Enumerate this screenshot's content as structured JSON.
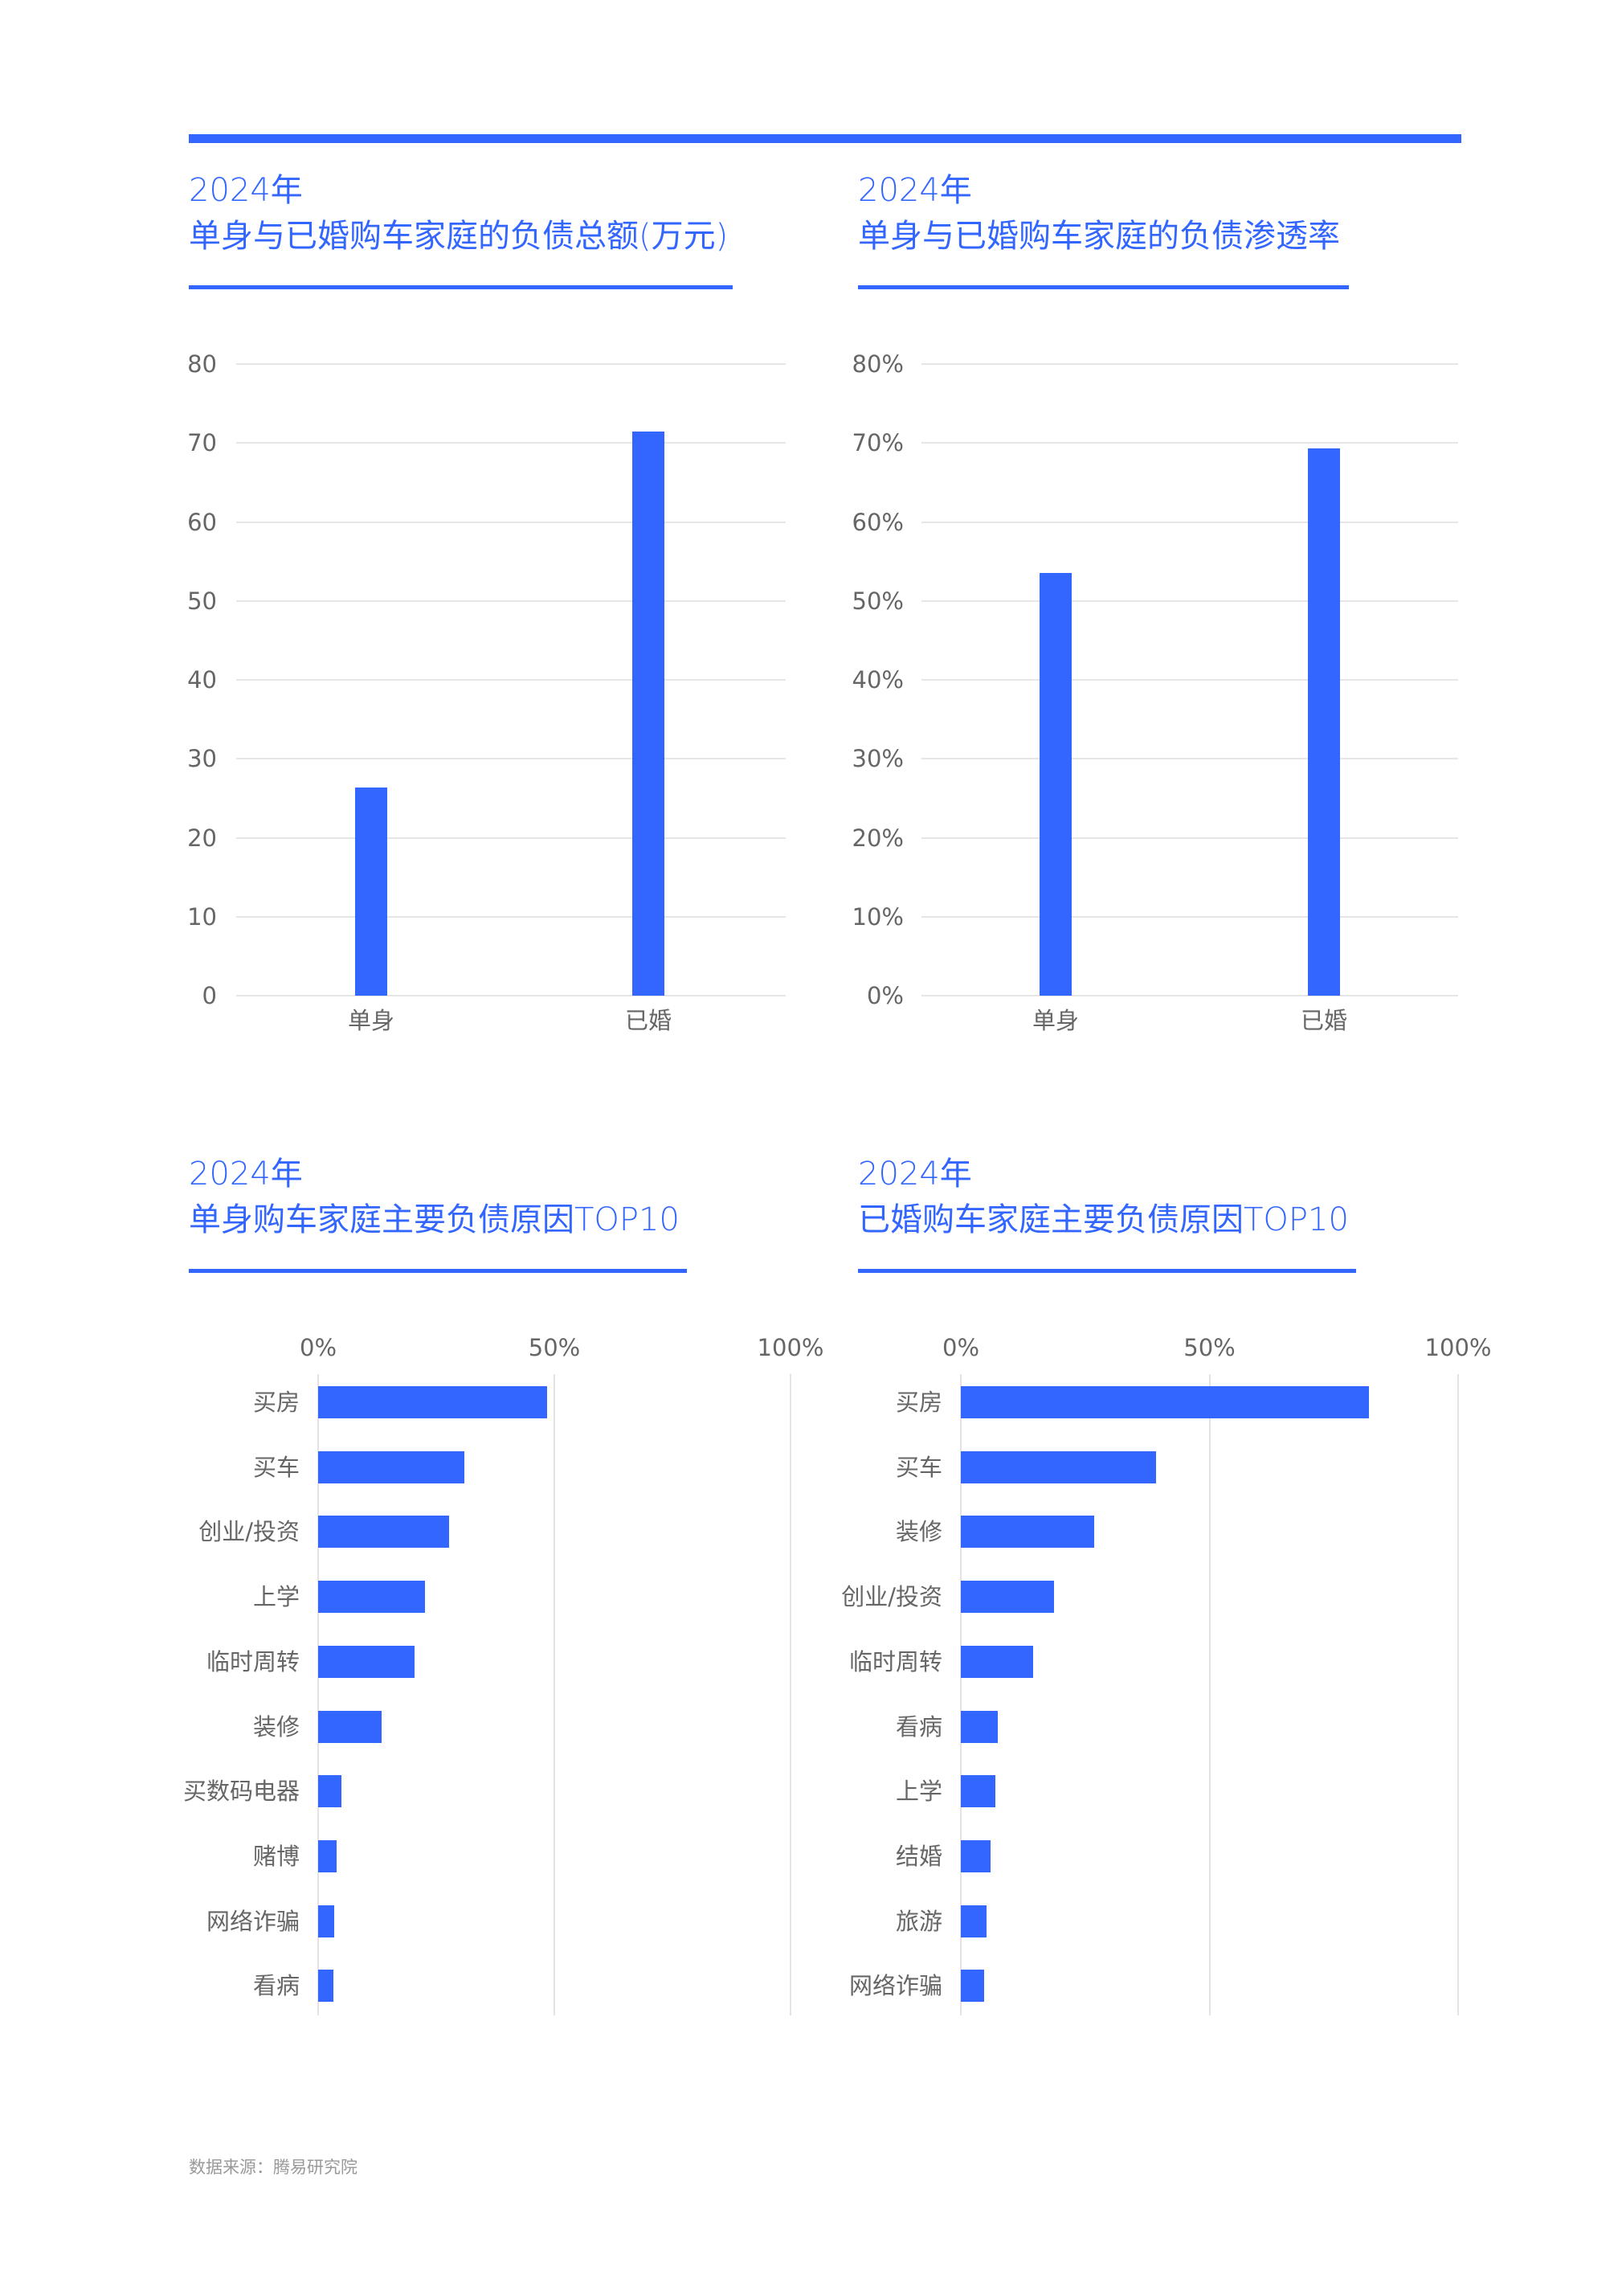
{
  "page": {
    "top_bar_color": "#3366ff",
    "accent_color": "#3366ff",
    "footer": "数据来源：腾易研究院"
  },
  "chart_data": [
    {
      "type": "bar",
      "id": "debt_total",
      "title_year": "2024年",
      "title": "单身与已婚购车家庭的负债总额(万元)",
      "xlabel": "",
      "ylabel": "",
      "categories": [
        "单身",
        "已婚"
      ],
      "values": [
        26.4,
        71.4
      ],
      "ylim": [
        0,
        80
      ],
      "yticks": [
        "0",
        "10",
        "20",
        "30",
        "40",
        "50",
        "60",
        "70",
        "80"
      ],
      "grid": true,
      "color": "#3366ff"
    },
    {
      "type": "bar",
      "id": "debt_penetration",
      "title_year": "2024年",
      "title": "单身与已婚购车家庭的负债渗透率",
      "xlabel": "",
      "ylabel": "",
      "categories": [
        "单身",
        "已婚"
      ],
      "values": [
        53.5,
        69.3
      ],
      "unit": "%",
      "ylim": [
        0,
        80
      ],
      "yticks": [
        "0%",
        "10%",
        "20%",
        "30%",
        "40%",
        "50%",
        "60%",
        "70%",
        "80%"
      ],
      "grid": true,
      "color": "#3366ff"
    },
    {
      "type": "bar",
      "orientation": "horizontal",
      "id": "single_reasons",
      "title_year": "2024年",
      "title": "单身购车家庭主要负债原因TOP10",
      "categories": [
        "买房",
        "买车",
        "创业/投资",
        "上学",
        "临时周转",
        "装修",
        "买数码电器",
        "赌博",
        "网络诈骗",
        "看病"
      ],
      "values": [
        48.5,
        31.0,
        27.8,
        22.6,
        20.4,
        13.4,
        4.9,
        3.9,
        3.4,
        3.3
      ],
      "unit": "%",
      "xlim": [
        0,
        100
      ],
      "xticks": [
        "0%",
        "50%",
        "100%"
      ],
      "grid": true,
      "color": "#3366ff"
    },
    {
      "type": "bar",
      "orientation": "horizontal",
      "id": "married_reasons",
      "title_year": "2024年",
      "title": "已婚购车家庭主要负债原因TOP10",
      "categories": [
        "买房",
        "买车",
        "装修",
        "创业/投资",
        "临时周转",
        "看病",
        "上学",
        "结婚",
        "旅游",
        "网络诈骗"
      ],
      "values": [
        82.0,
        39.3,
        26.8,
        18.8,
        14.5,
        7.4,
        6.9,
        6.0,
        5.2,
        4.7
      ],
      "unit": "%",
      "xlim": [
        0,
        100
      ],
      "xticks": [
        "0%",
        "50%",
        "100%"
      ],
      "grid": true,
      "color": "#3366ff"
    }
  ]
}
